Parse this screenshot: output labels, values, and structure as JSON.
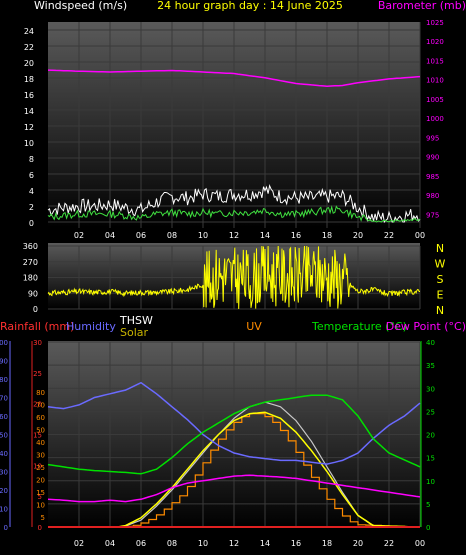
{
  "header": {
    "wind_title": "Windspeed (m/s)",
    "period_title": "24 hour graph day : 14 June 2025",
    "baro_title": "Barometer (mb)"
  },
  "colors": {
    "background": "#000000",
    "plot_top": "#5a5a5a",
    "plot_bottom": "#000000",
    "grid": "#3a3a3a",
    "wind_speed": "#ffffff",
    "wind_avg": "#40e040",
    "wind_dir": "#ffff00",
    "barometer": "#ff00ff",
    "rain": "#e02020",
    "humidity": "#6a6aff",
    "thsw": "#ffffff",
    "solar": "#c0b000",
    "uv": "#ff8c00",
    "temperature": "#00e000",
    "dew_point": "#ff00ff",
    "axis_text": "#ffffff",
    "uv_text": "#ff8c00",
    "temp_text": "#00e000",
    "dew_text": "#ff00ff",
    "rain_text": "#ff3030",
    "hum_text": "#6a6aff",
    "thsw_text": "#ffffff",
    "solar_text": "#c8b400",
    "yellow_text": "#ffff00"
  },
  "chart_data": [
    {
      "id": "wind_baro",
      "type": "line",
      "title": "24 hour graph day : 14 June 2025",
      "x_ticks": [
        "02",
        "04",
        "06",
        "08",
        "10",
        "12",
        "14",
        "16",
        "18",
        "20",
        "22",
        "00"
      ],
      "x_range_hours": [
        0,
        24
      ],
      "y_left": {
        "label": "Windspeed (m/s)",
        "range": [
          0,
          25
        ],
        "ticks": [
          0,
          2,
          4,
          6,
          8,
          10,
          12,
          14,
          16,
          18,
          20,
          22,
          24
        ]
      },
      "y_right": {
        "label": "Barometer (mb)",
        "range": [
          973,
          1025
        ],
        "ticks": [
          975,
          980,
          985,
          990,
          995,
          1000,
          1005,
          1010,
          1015,
          1020,
          1025
        ]
      },
      "series": [
        {
          "key": "gust",
          "axis": "left",
          "x": [
            0,
            1,
            2,
            3,
            4,
            5,
            6,
            7,
            8,
            9,
            10,
            11,
            12,
            13,
            14,
            15,
            16,
            17,
            18,
            19,
            20,
            21,
            22,
            23,
            24
          ],
          "y": [
            1.5,
            1.8,
            2.0,
            2.0,
            2.2,
            1.8,
            1.5,
            2.5,
            3.2,
            3.0,
            3.5,
            3.2,
            3.5,
            3.5,
            4.0,
            3.2,
            3.0,
            3.0,
            3.2,
            3.2,
            1.8,
            0.6,
            0.5,
            0.8,
            1.0
          ]
        },
        {
          "key": "average",
          "axis": "left",
          "x": [
            0,
            1,
            2,
            3,
            4,
            5,
            6,
            7,
            8,
            9,
            10,
            11,
            12,
            13,
            14,
            15,
            16,
            17,
            18,
            19,
            20,
            21,
            22,
            23,
            24
          ],
          "y": [
            0.6,
            0.8,
            1.0,
            1.0,
            1.0,
            0.8,
            0.5,
            1.0,
            1.2,
            1.0,
            1.2,
            1.0,
            1.2,
            1.2,
            1.5,
            1.0,
            1.0,
            1.2,
            1.5,
            1.5,
            0.6,
            0.1,
            0.1,
            0.2,
            0.3
          ]
        },
        {
          "key": "barometer",
          "axis": "right",
          "x": [
            0,
            2,
            4,
            6,
            8,
            10,
            12,
            14,
            16,
            18,
            19,
            20,
            22,
            24
          ],
          "y": [
            1012.5,
            1012.2,
            1012.0,
            1012.2,
            1012.4,
            1012.0,
            1011.6,
            1010.5,
            1009.0,
            1008.3,
            1008.5,
            1009.2,
            1010.2,
            1010.8
          ]
        }
      ]
    },
    {
      "id": "wind_direction",
      "type": "line",
      "x_ticks": [
        "02",
        "04",
        "06",
        "08",
        "10",
        "12",
        "14",
        "16",
        "18",
        "20",
        "22",
        "00"
      ],
      "y_left": {
        "range": [
          0,
          360
        ],
        "ticks": [
          0,
          90,
          180,
          270,
          360
        ]
      },
      "y_right_labels": [
        "N",
        "W",
        "S",
        "E",
        "N"
      ],
      "series": [
        {
          "key": "direction",
          "x": [
            0,
            1,
            2,
            3,
            4,
            5,
            6,
            7,
            8,
            9,
            10,
            11,
            12,
            13,
            14,
            15,
            16,
            17,
            18,
            19,
            20,
            21,
            22,
            23,
            24
          ],
          "y": [
            90,
            95,
            100,
            95,
            100,
            90,
            95,
            95,
            100,
            110,
            140,
            200,
            180,
            170,
            200,
            190,
            180,
            200,
            190,
            175,
            100,
            110,
            85,
            95,
            100
          ]
        }
      ]
    },
    {
      "id": "temperature_humidity",
      "type": "line",
      "legend": [
        "Rainfall (mm)",
        "Humidity",
        "THSW",
        "Solar",
        "UV",
        "Temperature (°C)",
        "Dew Point (°C)"
      ],
      "x_ticks": [
        "02",
        "04",
        "06",
        "08",
        "10",
        "12",
        "14",
        "16",
        "18",
        "20",
        "22",
        "00"
      ],
      "y_humidity": {
        "range": [
          0,
          100
        ],
        "ticks": [
          0,
          10,
          20,
          30,
          40,
          50,
          60,
          70,
          80,
          90,
          100
        ]
      },
      "y_rain": {
        "range": [
          0,
          30
        ],
        "ticks": [
          0,
          5,
          10,
          15,
          20,
          25,
          30
        ]
      },
      "y_uv": {
        "ticks": [
          5,
          10,
          15,
          20,
          25,
          30,
          40,
          50,
          60,
          70,
          80
        ]
      },
      "y_temp": {
        "range": [
          0,
          40
        ],
        "ticks": [
          0,
          5,
          10,
          15,
          20,
          25,
          30,
          35,
          40
        ]
      },
      "series": [
        {
          "key": "humidity",
          "axis": "humidity",
          "x": [
            0,
            1,
            2,
            3,
            4,
            5,
            6,
            7,
            8,
            9,
            10,
            11,
            12,
            13,
            14,
            15,
            16,
            17,
            18,
            19,
            20,
            21,
            22,
            23,
            24
          ],
          "y": [
            65,
            64,
            66,
            70,
            72,
            74,
            78,
            72,
            65,
            58,
            50,
            44,
            40,
            38,
            37,
            36,
            36,
            35,
            34,
            36,
            40,
            48,
            55,
            60,
            67
          ]
        },
        {
          "key": "temperature",
          "axis": "temp",
          "x": [
            0,
            1,
            2,
            3,
            4,
            5,
            6,
            7,
            8,
            9,
            10,
            11,
            12,
            13,
            14,
            15,
            16,
            17,
            18,
            19,
            20,
            21,
            22,
            23,
            24
          ],
          "y": [
            13.5,
            13.0,
            12.5,
            12.2,
            12.0,
            11.8,
            11.5,
            12.5,
            15.0,
            18.0,
            20.5,
            22.5,
            24.5,
            26.0,
            27.0,
            27.5,
            28.0,
            28.5,
            28.5,
            27.5,
            24.0,
            19.0,
            16.0,
            14.5,
            13.0
          ]
        },
        {
          "key": "dew_point",
          "axis": "temp",
          "x": [
            0,
            1,
            2,
            3,
            4,
            5,
            6,
            7,
            8,
            9,
            10,
            11,
            12,
            13,
            14,
            15,
            16,
            17,
            18,
            19,
            20,
            21,
            22,
            23,
            24
          ],
          "y": [
            6.0,
            5.8,
            5.5,
            5.5,
            5.8,
            5.5,
            6.0,
            7.0,
            8.5,
            9.5,
            10.0,
            10.5,
            11.0,
            11.2,
            11.0,
            10.8,
            10.5,
            10.0,
            9.5,
            9.0,
            8.5,
            8.0,
            7.5,
            7.0,
            6.5
          ]
        },
        {
          "key": "solar",
          "axis": "temp",
          "x": [
            0,
            4.5,
            5,
            6,
            7,
            8,
            9,
            10,
            11,
            12,
            13,
            14,
            15,
            16,
            17,
            18,
            19,
            20,
            21,
            24
          ],
          "y": [
            0,
            0,
            0.3,
            2.0,
            5.0,
            8.5,
            12.5,
            16.5,
            20.0,
            23.0,
            24.5,
            24.8,
            23.5,
            20.5,
            16.5,
            12.0,
            7.0,
            2.5,
            0.3,
            0
          ]
        },
        {
          "key": "thsw",
          "axis": "temp",
          "x": [
            0,
            4.5,
            5,
            6,
            7,
            8,
            9,
            10,
            11,
            12,
            13,
            14,
            15,
            16,
            17,
            18,
            19,
            20,
            21,
            24
          ],
          "y": [
            0,
            0,
            0.2,
            1.5,
            4.5,
            8.0,
            12.0,
            16.0,
            20.0,
            23.5,
            26.0,
            27.0,
            26.0,
            23.0,
            18.5,
            13.0,
            7.5,
            2.5,
            0.2,
            0
          ]
        },
        {
          "key": "uv",
          "axis": "temp",
          "x": [
            0,
            5,
            6,
            7,
            8,
            9,
            10,
            11,
            12,
            13,
            14,
            15,
            16,
            17,
            18,
            19,
            20,
            24
          ],
          "y": [
            0,
            0,
            0.5,
            2.0,
            4.5,
            7.5,
            12.5,
            18.0,
            22.0,
            24.5,
            24.5,
            22.0,
            17.5,
            12.0,
            7.0,
            3.0,
            0.5,
            0
          ]
        },
        {
          "key": "rainfall",
          "axis": "rain",
          "x": [
            0,
            24
          ],
          "y": [
            0,
            0
          ]
        }
      ]
    }
  ]
}
